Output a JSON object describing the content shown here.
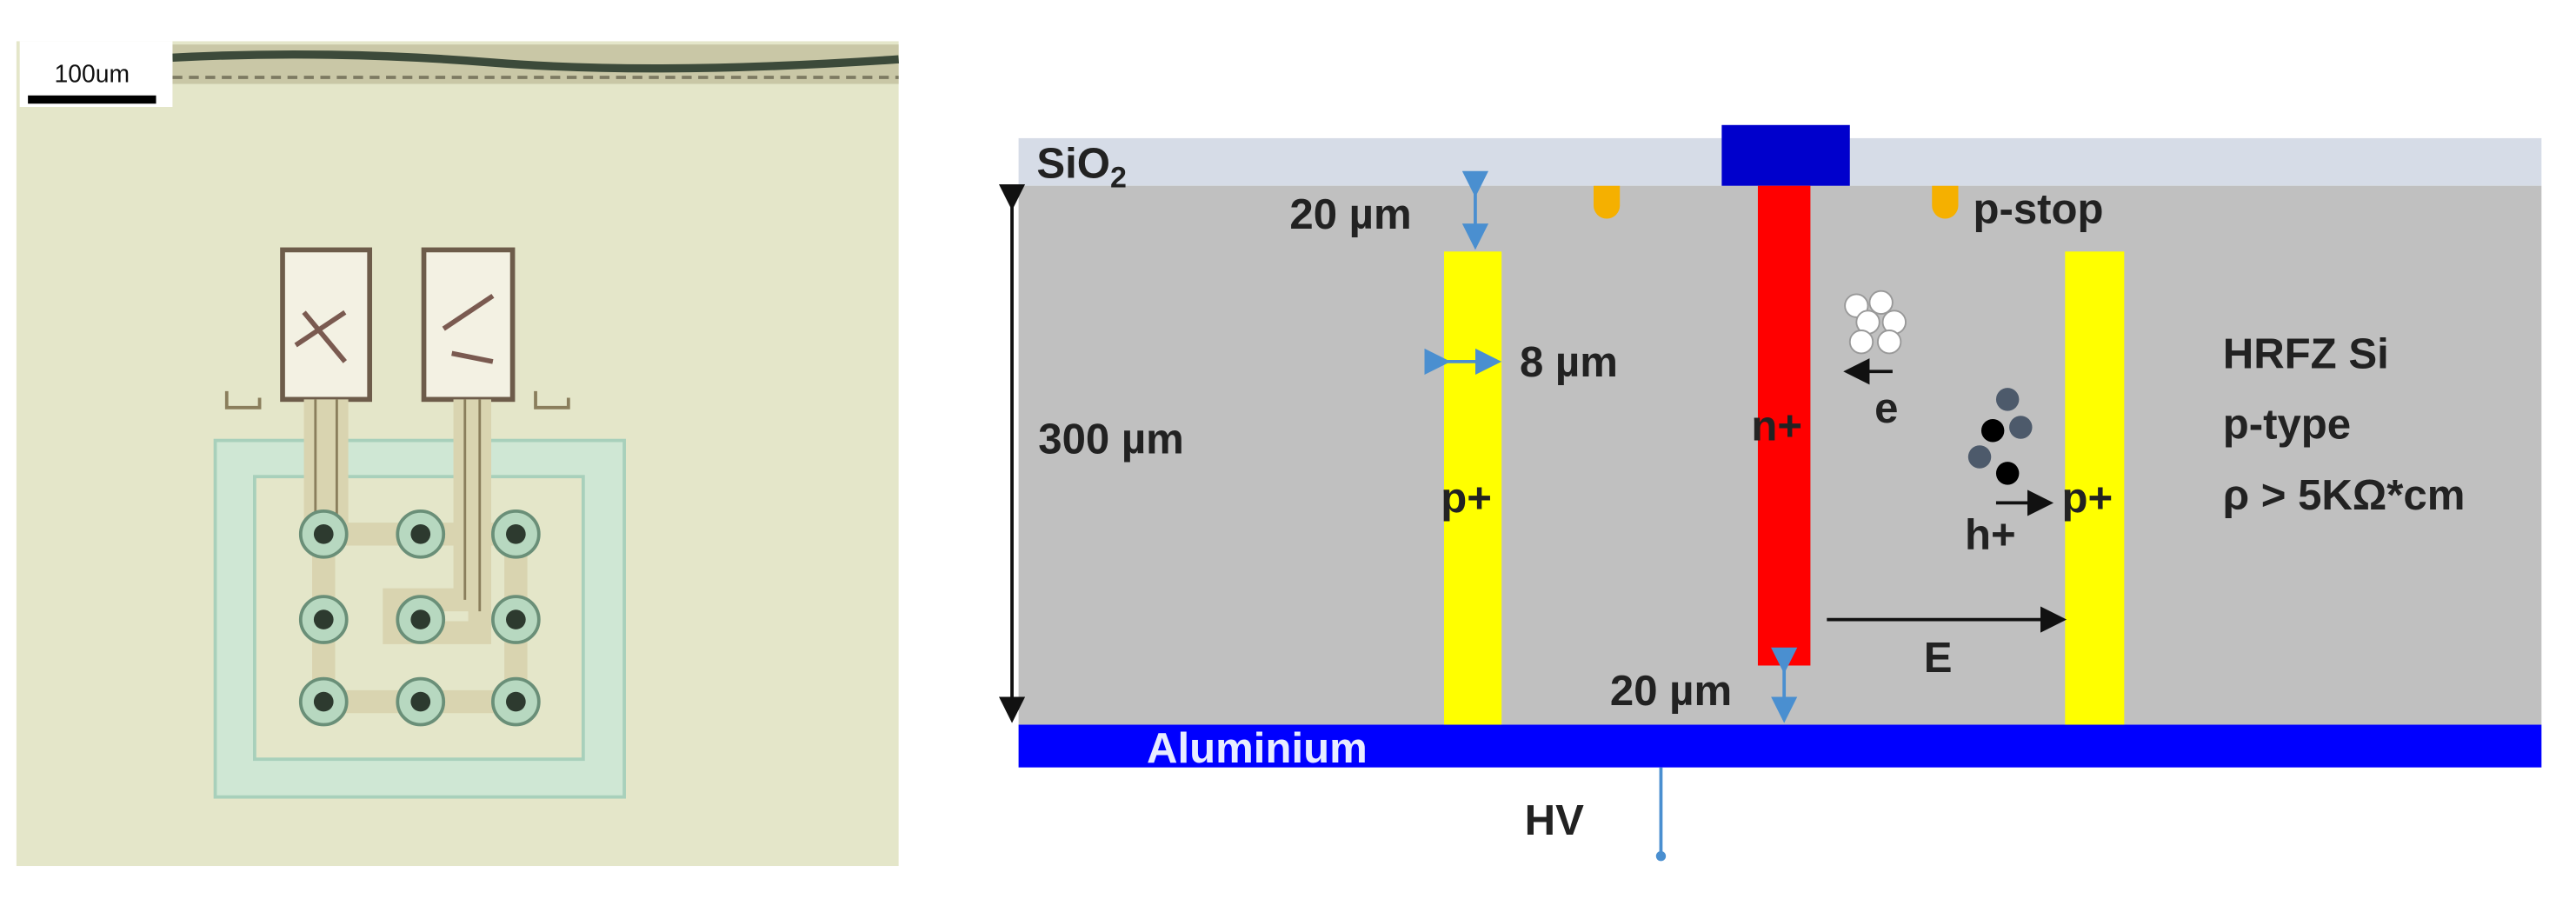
{
  "micrograph": {
    "scale_bar": "100um"
  },
  "diagram": {
    "oxide": {
      "text": "SiO",
      "subscript": "2"
    },
    "top_gap": "20 µm",
    "p_stop": "p-stop",
    "column_width": "8 µm",
    "thickness": "300 µm",
    "n_plus": "n+",
    "electron": "e",
    "p_plus_left": "p+",
    "p_plus_right": "p+",
    "hole": "h+",
    "material": [
      "HRFZ  Si",
      "p-type",
      "ρ > 5KΩ*cm"
    ],
    "field": "E",
    "bottom_gap": "20 µm",
    "backside": "Aluminium",
    "bias": "HV"
  }
}
